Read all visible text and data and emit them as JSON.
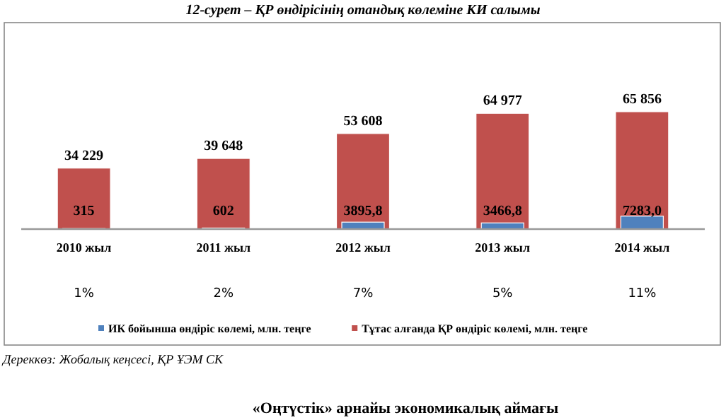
{
  "chart_data": {
    "type": "bar",
    "title": "12-сурет – ҚР өндірісінің отандық көлеміне КИ салымы",
    "categories": [
      "2010 жыл",
      "2011 жыл",
      "2012 жыл",
      "2013 жыл",
      "2014 жыл"
    ],
    "series": [
      {
        "name": "Тұтас алғанда ҚР өндіріс көлемі, млн. теңге",
        "color": "#c0504d",
        "values": [
          34229,
          39648,
          53608,
          64977,
          65856
        ],
        "value_labels": [
          "34 229",
          "39 648",
          "53 608",
          "64 977",
          "65 856"
        ]
      },
      {
        "name": "ИК бойынша өндіріс көлемі, млн. теңге",
        "color": "#4f81bd",
        "values": [
          315,
          602,
          3895.8,
          3466.8,
          7283.0
        ],
        "value_labels": [
          "315",
          "602",
          "3895,8",
          "3466,8",
          "7283,0"
        ]
      }
    ],
    "legend": "bottom",
    "annotations": [
      "1%",
      "2%",
      "7%",
      "5%",
      "11%",
      "Дереккөз: Жобалық кеңсесі, ҚР ҰЭМ СК",
      "«Оңтүстік» арнайы экономикалық аймағы"
    ]
  }
}
